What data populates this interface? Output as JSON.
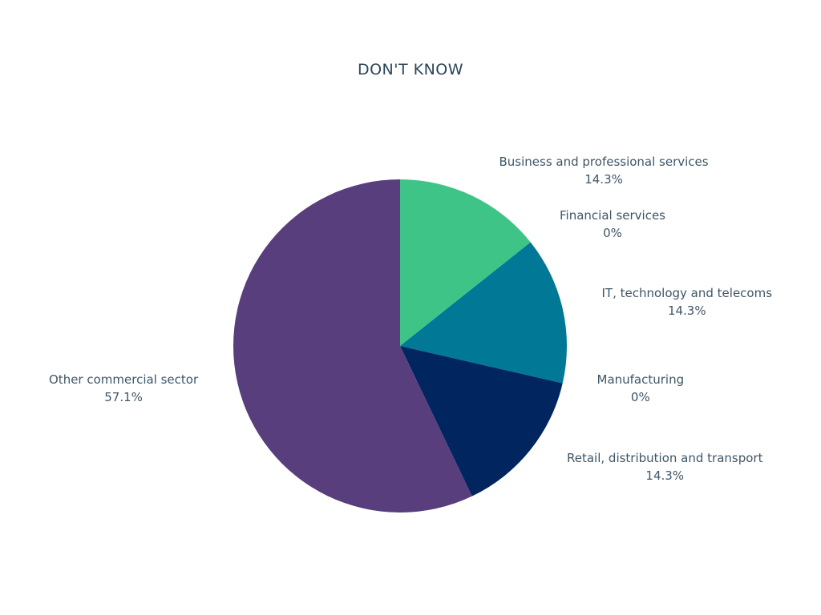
{
  "chart_data": {
    "type": "pie",
    "title": "DON'T KNOW",
    "slices": [
      {
        "label": "Business and professional services",
        "value": 14.3,
        "value_label": "14.3%",
        "color": "#3ec487"
      },
      {
        "label": "Financial services",
        "value": 0,
        "value_label": "0%",
        "color": "#2a9d8f"
      },
      {
        "label": "IT, technology and telecoms",
        "value": 14.3,
        "value_label": "14.3%",
        "color": "#007896"
      },
      {
        "label": "Manufacturing",
        "value": 0,
        "value_label": "0%",
        "color": "#0f4c81"
      },
      {
        "label": "Retail, distribution and transport",
        "value": 14.3,
        "value_label": "14.3%",
        "color": "#00255f"
      },
      {
        "label": "Other commercial sector",
        "value": 57.1,
        "value_label": "57.1%",
        "color": "#583e7c"
      }
    ]
  }
}
